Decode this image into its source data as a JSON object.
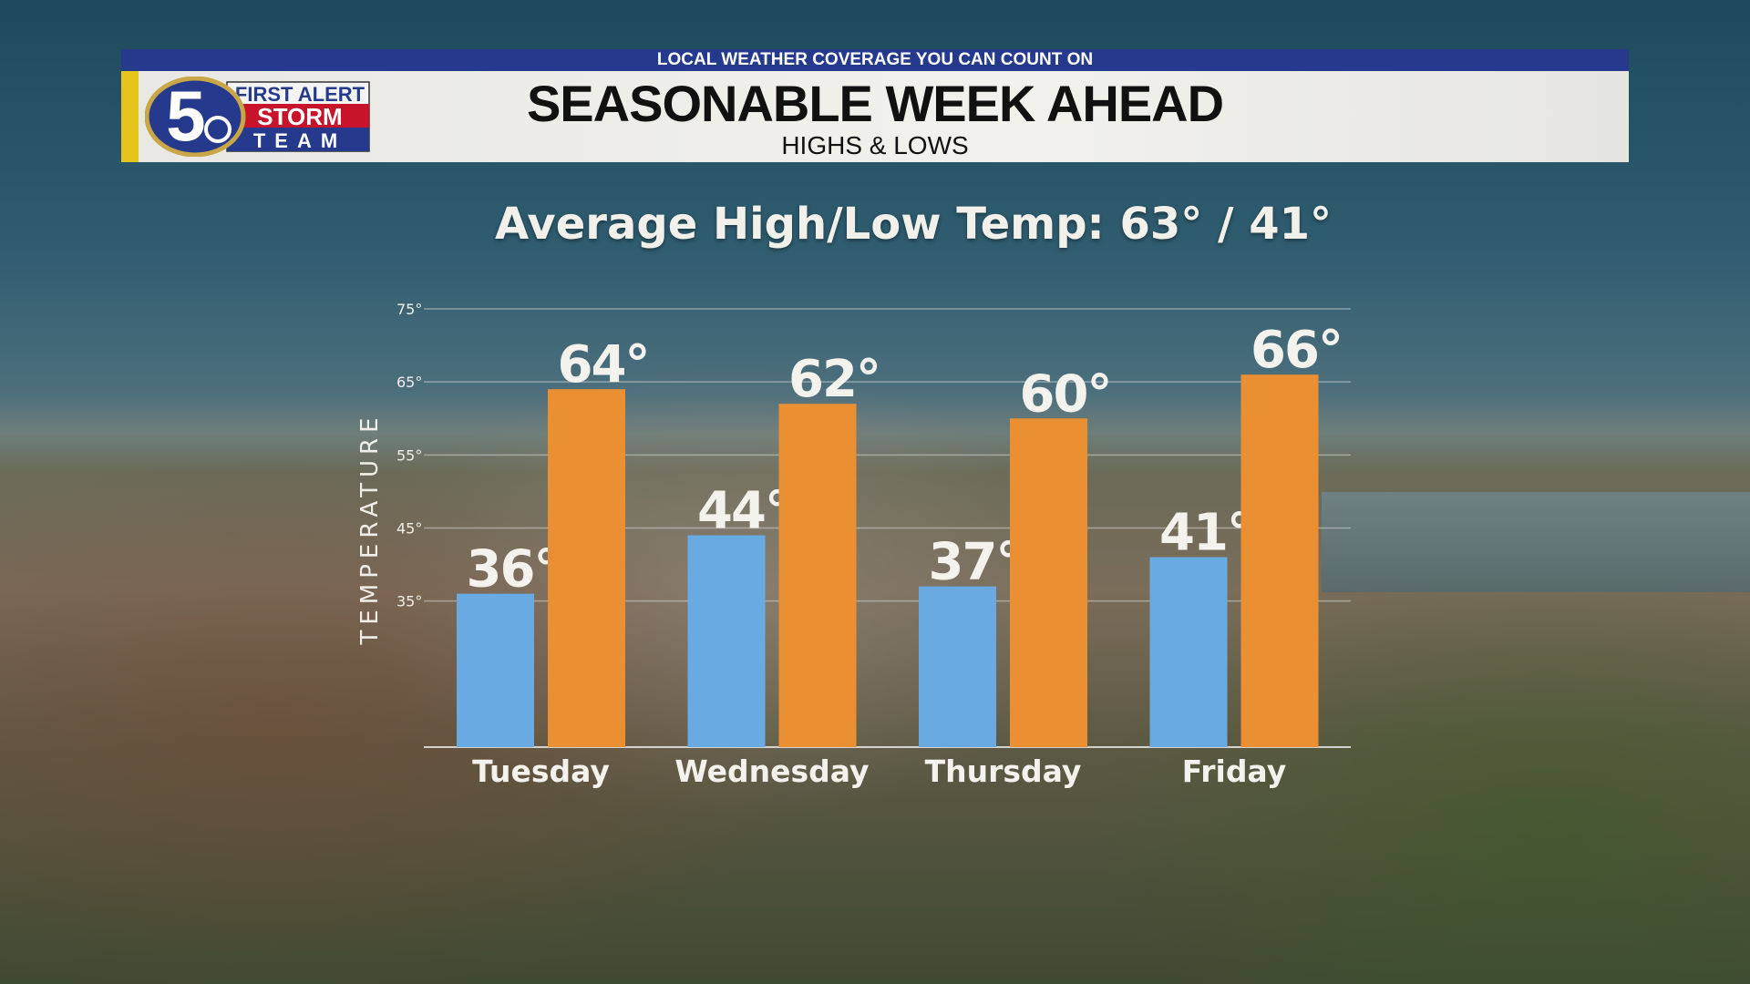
{
  "header": {
    "tagline": "LOCAL WEATHER COVERAGE YOU CAN COUNT ON",
    "title": "SEASONABLE WEEK AHEAD",
    "subtitle": "HIGHS & LOWS",
    "logo": {
      "number": "5",
      "line1": "FIRST ALERT",
      "line2": "STORM",
      "line3": "TEAM"
    }
  },
  "average_text": "Average High/Low Temp: 63° / 41°",
  "chart_data": {
    "type": "bar",
    "categories": [
      "Tuesday",
      "Wednesday",
      "Thursday",
      "Friday"
    ],
    "series": [
      {
        "name": "Low",
        "values": [
          36,
          44,
          37,
          41
        ],
        "color": "#6aaae2"
      },
      {
        "name": "High",
        "values": [
          64,
          62,
          60,
          66
        ],
        "color": "#eb9032"
      }
    ],
    "ylabel": "TEMPERATURE",
    "yticks": [
      35,
      45,
      55,
      65,
      75
    ],
    "ytick_suffix": "°",
    "ylim": [
      15,
      75
    ],
    "grid": true,
    "value_suffix": "°"
  }
}
